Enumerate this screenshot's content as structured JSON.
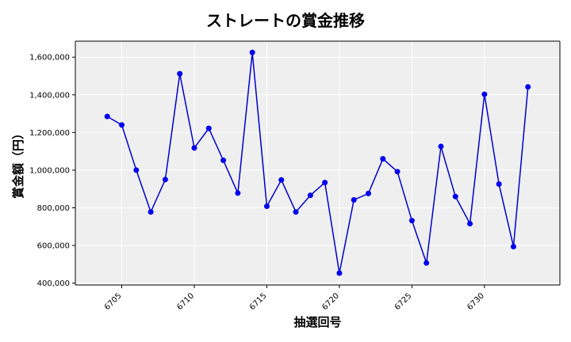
{
  "chart_data": {
    "type": "line",
    "title": "ストレートの賞金推移",
    "xlabel": "抽選回号",
    "ylabel": "賞金額（円）",
    "x": [
      6704,
      6705,
      6706,
      6707,
      6708,
      6709,
      6710,
      6711,
      6712,
      6713,
      6714,
      6715,
      6716,
      6717,
      6718,
      6719,
      6720,
      6721,
      6722,
      6723,
      6724,
      6725,
      6726,
      6727,
      6728,
      6729,
      6730,
      6731,
      6732,
      6733
    ],
    "series": [
      {
        "values": [
          1285000,
          1240000,
          1000000,
          778000,
          950000,
          1512000,
          1118000,
          1222000,
          1052000,
          878000,
          1625000,
          808000,
          948000,
          778000,
          866000,
          934000,
          453000,
          842000,
          876000,
          1060000,
          992000,
          732000,
          507000,
          1126000,
          860000,
          716000,
          1403000,
          926000,
          594000,
          1442000
        ]
      }
    ],
    "xlim": [
      6701.8,
      6735.2
    ],
    "ylim": [
      390000,
      1685000
    ],
    "xticks": [
      "6705",
      "6710",
      "6715",
      "6720",
      "6725",
      "6730"
    ],
    "yticks": [
      "400,000",
      "600,000",
      "800,000",
      "1,000,000",
      "1,200,000",
      "1,400,000",
      "1,600,000"
    ],
    "grid": true,
    "colors": {
      "line": "#0000cc",
      "marker": "#0000ee",
      "plot_bg": "#efefef",
      "grid": "#ffffff"
    }
  }
}
